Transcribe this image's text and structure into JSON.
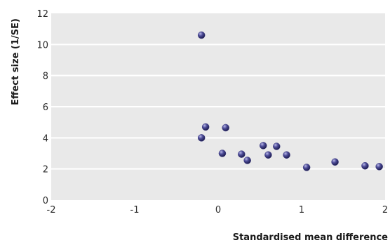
{
  "chart_data": {
    "type": "scatter",
    "title": "",
    "xlabel": "Standardised mean difference",
    "ylabel": "Effect size (1/SE)",
    "xlim": [
      -2,
      2
    ],
    "ylim": [
      0,
      12
    ],
    "x_ticks": [
      "-2",
      "-1",
      "0",
      "1",
      "2"
    ],
    "y_ticks": [
      "0",
      "2",
      "4",
      "6",
      "8",
      "10",
      "12"
    ],
    "grid": "horizontal",
    "background_color": "#e9e9e9",
    "gridline_color": "#ffffff",
    "point_color": "#3b3a80",
    "points": [
      {
        "x": -0.2,
        "y": 10.6
      },
      {
        "x": -0.15,
        "y": 4.7
      },
      {
        "x": -0.2,
        "y": 4.0
      },
      {
        "x": 0.09,
        "y": 4.65
      },
      {
        "x": 0.05,
        "y": 3.0
      },
      {
        "x": 0.28,
        "y": 2.95
      },
      {
        "x": 0.35,
        "y": 2.55
      },
      {
        "x": 0.54,
        "y": 3.5
      },
      {
        "x": 0.6,
        "y": 2.9
      },
      {
        "x": 0.7,
        "y": 3.45
      },
      {
        "x": 0.82,
        "y": 2.9
      },
      {
        "x": 1.06,
        "y": 2.1
      },
      {
        "x": 1.4,
        "y": 2.45
      },
      {
        "x": 1.76,
        "y": 2.2
      },
      {
        "x": 1.93,
        "y": 2.15
      }
    ]
  }
}
